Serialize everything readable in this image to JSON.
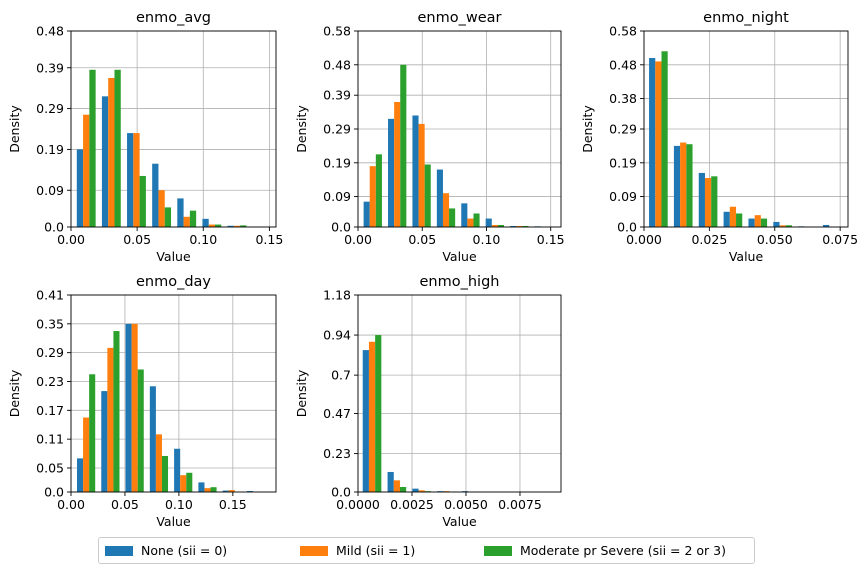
{
  "colors": {
    "none": "#1f77b4",
    "mild": "#ff7f0e",
    "severe": "#2ca02c",
    "grid": "#b0b0b0"
  },
  "legend": {
    "items": [
      {
        "label": "None (sii = 0)",
        "color": "#1f77b4"
      },
      {
        "label": "Mild (sii = 1)",
        "color": "#ff7f0e"
      },
      {
        "label": "Moderate pr Severe (sii = 2 or 3)",
        "color": "#2ca02c"
      }
    ],
    "placement": "bottom-center"
  },
  "chart_data": [
    {
      "type": "bar",
      "title": "enmo_avg",
      "xlabel": "Value",
      "ylabel": "Density",
      "grid": true,
      "xlim": [
        0.0,
        0.155
      ],
      "ylim": [
        0.0,
        0.48
      ],
      "xticks": [
        0.0,
        0.05,
        0.1,
        0.15
      ],
      "xticklabels": [
        "0.00",
        "0.05",
        "0.10",
        "0.15"
      ],
      "yticks": [
        0.0,
        0.09,
        0.19,
        0.29,
        0.39,
        0.48
      ],
      "yticklabels": [
        "0.0",
        "0.09",
        "0.19",
        "0.29",
        "0.39",
        "0.48"
      ],
      "bin_width": 0.019,
      "bin_centers": [
        0.0115,
        0.0305,
        0.0495,
        0.0685,
        0.0875,
        0.1065,
        0.1255,
        0.1445
      ],
      "series": [
        {
          "name": "None (sii = 0)",
          "values": [
            0.19,
            0.32,
            0.23,
            0.155,
            0.07,
            0.02,
            0.003,
            0.001
          ]
        },
        {
          "name": "Mild (sii = 1)",
          "values": [
            0.275,
            0.365,
            0.23,
            0.09,
            0.025,
            0.006,
            0.003,
            0.0
          ]
        },
        {
          "name": "Moderate pr Severe (sii = 2 or 3)",
          "values": [
            0.385,
            0.385,
            0.125,
            0.048,
            0.04,
            0.006,
            0.004,
            0.0
          ]
        }
      ]
    },
    {
      "type": "bar",
      "title": "enmo_wear",
      "xlabel": "Value",
      "ylabel": "Density",
      "grid": true,
      "xlim": [
        0.0,
        0.158
      ],
      "ylim": [
        0.0,
        0.58
      ],
      "xticks": [
        0.0,
        0.05,
        0.1,
        0.15
      ],
      "xticklabels": [
        "0.00",
        "0.05",
        "0.10",
        "0.15"
      ],
      "yticks": [
        0.0,
        0.09,
        0.19,
        0.29,
        0.39,
        0.48,
        0.58
      ],
      "yticklabels": [
        "0.0",
        "0.09",
        "0.19",
        "0.29",
        "0.39",
        "0.48",
        "0.58"
      ],
      "bin_width": 0.019,
      "bin_centers": [
        0.0115,
        0.0305,
        0.0495,
        0.0685,
        0.0875,
        0.1065,
        0.1255,
        0.1445
      ],
      "series": [
        {
          "name": "None (sii = 0)",
          "values": [
            0.075,
            0.32,
            0.33,
            0.17,
            0.07,
            0.025,
            0.003,
            0.002
          ]
        },
        {
          "name": "Mild (sii = 1)",
          "values": [
            0.18,
            0.37,
            0.305,
            0.1,
            0.025,
            0.006,
            0.003,
            0.0
          ]
        },
        {
          "name": "Moderate pr Severe (sii = 2 or 3)",
          "values": [
            0.215,
            0.48,
            0.185,
            0.055,
            0.04,
            0.006,
            0.003,
            0.0
          ]
        }
      ]
    },
    {
      "type": "bar",
      "title": "enmo_night",
      "xlabel": "Value",
      "ylabel": "Density",
      "grid": true,
      "xlim": [
        0.0,
        0.078
      ],
      "ylim": [
        0.0,
        0.58
      ],
      "xticks": [
        0.0,
        0.025,
        0.05,
        0.075
      ],
      "xticklabels": [
        "0.000",
        "0.025",
        "0.050",
        "0.075"
      ],
      "yticks": [
        0.0,
        0.09,
        0.19,
        0.29,
        0.38,
        0.48,
        0.58
      ],
      "yticklabels": [
        "0.0",
        "0.09",
        "0.19",
        "0.29",
        "0.38",
        "0.48",
        "0.58"
      ],
      "bin_width": 0.0095,
      "bin_centers": [
        0.0055,
        0.015,
        0.0245,
        0.034,
        0.0435,
        0.053,
        0.0625,
        0.072
      ],
      "series": [
        {
          "name": "None (sii = 0)",
          "values": [
            0.5,
            0.24,
            0.16,
            0.045,
            0.025,
            0.015,
            0.002,
            0.006
          ]
        },
        {
          "name": "Mild (sii = 1)",
          "values": [
            0.49,
            0.25,
            0.145,
            0.06,
            0.035,
            0.005,
            0.0,
            0.0
          ]
        },
        {
          "name": "Moderate pr Severe (sii = 2 or 3)",
          "values": [
            0.52,
            0.245,
            0.15,
            0.04,
            0.025,
            0.005,
            0.0,
            0.0
          ]
        }
      ]
    },
    {
      "type": "bar",
      "title": "enmo_day",
      "xlabel": "Value",
      "ylabel": "Density",
      "grid": true,
      "xlim": [
        0.0,
        0.19
      ],
      "ylim": [
        0.0,
        0.41
      ],
      "xticks": [
        0.0,
        0.05,
        0.1,
        0.15
      ],
      "xticklabels": [
        "0.00",
        "0.05",
        "0.10",
        "0.15"
      ],
      "yticks": [
        0.0,
        0.05,
        0.11,
        0.17,
        0.23,
        0.29,
        0.35,
        0.41
      ],
      "yticklabels": [
        "0.0",
        "0.05",
        "0.11",
        "0.17",
        "0.23",
        "0.29",
        "0.35",
        "0.41"
      ],
      "bin_width": 0.0225,
      "bin_centers": [
        0.014,
        0.0365,
        0.059,
        0.0815,
        0.104,
        0.1265,
        0.149,
        0.1715
      ],
      "series": [
        {
          "name": "None (sii = 0)",
          "values": [
            0.07,
            0.21,
            0.35,
            0.22,
            0.09,
            0.02,
            0.003,
            0.002
          ]
        },
        {
          "name": "Mild (sii = 1)",
          "values": [
            0.155,
            0.3,
            0.35,
            0.12,
            0.035,
            0.008,
            0.004,
            0.0
          ]
        },
        {
          "name": "Moderate pr Severe (sii = 2 or 3)",
          "values": [
            0.245,
            0.335,
            0.255,
            0.075,
            0.04,
            0.01,
            0.0,
            0.0
          ]
        }
      ]
    },
    {
      "type": "bar",
      "title": "enmo_high",
      "xlabel": "Value",
      "ylabel": "Density",
      "grid": true,
      "xlim": [
        0.0,
        0.0094
      ],
      "ylim": [
        0.0,
        1.18
      ],
      "xticks": [
        0.0,
        0.0025,
        0.005,
        0.0075
      ],
      "xticklabels": [
        "0.0000",
        "0.0025",
        "0.0050",
        "0.0075"
      ],
      "yticks": [
        0.0,
        0.23,
        0.47,
        0.7,
        0.94,
        1.18
      ],
      "yticklabels": [
        "0.0",
        "0.23",
        "0.47",
        "0.7",
        "0.94",
        "1.18"
      ],
      "bin_width": 0.00115,
      "bin_centers": [
        0.00065,
        0.0018,
        0.00295,
        0.0041,
        0.00525,
        0.0064,
        0.00755,
        0.0087
      ],
      "series": [
        {
          "name": "None (sii = 0)",
          "values": [
            0.85,
            0.12,
            0.02,
            0.005,
            0.005,
            0.0,
            0.0,
            0.0
          ]
        },
        {
          "name": "Mild (sii = 1)",
          "values": [
            0.9,
            0.07,
            0.01,
            0.005,
            0.0,
            0.0,
            0.0,
            0.0
          ]
        },
        {
          "name": "Moderate pr Severe (sii = 2 or 3)",
          "values": [
            0.94,
            0.03,
            0.005,
            0.003,
            0.0,
            0.0,
            0.0,
            0.0
          ]
        }
      ]
    }
  ]
}
